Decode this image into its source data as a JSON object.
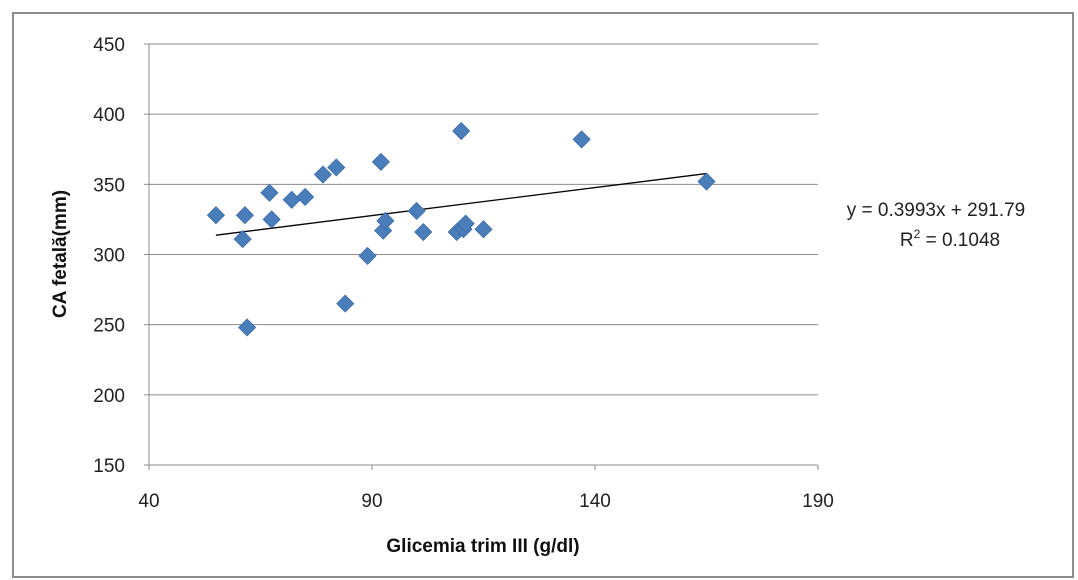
{
  "chart_data": {
    "type": "scatter",
    "title": "",
    "xlabel": "Glicemia trim III (g/dl)",
    "ylabel": "CA fetală(mm)",
    "xlim": [
      40,
      190
    ],
    "ylim": [
      150,
      450
    ],
    "xticks": [
      40,
      90,
      140,
      190
    ],
    "yticks": [
      150,
      200,
      250,
      300,
      350,
      400,
      450
    ],
    "grid": "horizontal",
    "marker_color": "#4a7ebb",
    "trendline_color": "#000000",
    "trendline": {
      "slope": 0.3993,
      "intercept": 291.79,
      "x_range": [
        55,
        165
      ]
    },
    "equation_label": "y = 0.3993x + 291.79",
    "r2_prefix": "R",
    "r2_sup": "2",
    "r2_value": " = 0.1048",
    "points": [
      {
        "x": 55,
        "y": 328
      },
      {
        "x": 61,
        "y": 311
      },
      {
        "x": 61.5,
        "y": 328
      },
      {
        "x": 62,
        "y": 248
      },
      {
        "x": 67,
        "y": 344
      },
      {
        "x": 67.5,
        "y": 325
      },
      {
        "x": 72,
        "y": 339
      },
      {
        "x": 75,
        "y": 341
      },
      {
        "x": 79,
        "y": 357
      },
      {
        "x": 82,
        "y": 362
      },
      {
        "x": 84,
        "y": 265
      },
      {
        "x": 89,
        "y": 299
      },
      {
        "x": 92,
        "y": 366
      },
      {
        "x": 92.5,
        "y": 317
      },
      {
        "x": 93,
        "y": 324
      },
      {
        "x": 100,
        "y": 331
      },
      {
        "x": 101.5,
        "y": 316
      },
      {
        "x": 109,
        "y": 316
      },
      {
        "x": 110,
        "y": 388
      },
      {
        "x": 110.5,
        "y": 318
      },
      {
        "x": 111,
        "y": 322
      },
      {
        "x": 115,
        "y": 318
      },
      {
        "x": 137,
        "y": 382
      },
      {
        "x": 165,
        "y": 352
      }
    ]
  }
}
